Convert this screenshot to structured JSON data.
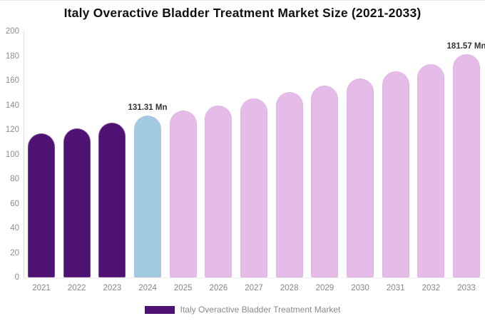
{
  "chart_data": {
    "type": "bar",
    "title": "Italy Overactive Bladder Treatment Market Size (2021-2033)",
    "categories": [
      "2021",
      "2022",
      "2023",
      "2024",
      "2025",
      "2026",
      "2027",
      "2028",
      "2029",
      "2030",
      "2031",
      "2032",
      "2033"
    ],
    "values": [
      117,
      121,
      126,
      131.31,
      135.5,
      140,
      145.5,
      151,
      156,
      161.5,
      167.5,
      173.5,
      181.57
    ],
    "unit": "Mn",
    "ylim": [
      0,
      200
    ],
    "yticks": [
      0,
      20,
      40,
      60,
      80,
      100,
      120,
      140,
      160,
      180,
      200
    ],
    "grid": "off",
    "bar_colors": [
      "#4E1272",
      "#4E1272",
      "#4E1272",
      "#A2CBDF",
      "#E5BBE7",
      "#E5BBE7",
      "#E5BBE7",
      "#E5BBE7",
      "#E5BBE7",
      "#E5BBE7",
      "#E5BBE7",
      "#E5BBE7",
      "#E5BBE7"
    ],
    "annotations": [
      {
        "category": "2024",
        "text": "131.31 Mn"
      },
      {
        "category": "2033",
        "text": "181.57 Mn"
      }
    ],
    "legend": {
      "position": "bottom-center",
      "label": "Italy Overactive Bladder Treatment Market",
      "swatch_color": "#4E1272"
    },
    "colors": {
      "historical_bar": "#4E1272",
      "highlight_bar": "#A2CBDF",
      "forecast_bar": "#E5BBE7",
      "axis_text": "#8d8d8d",
      "annotation_text": "#333333",
      "title_text": "#111111"
    }
  }
}
